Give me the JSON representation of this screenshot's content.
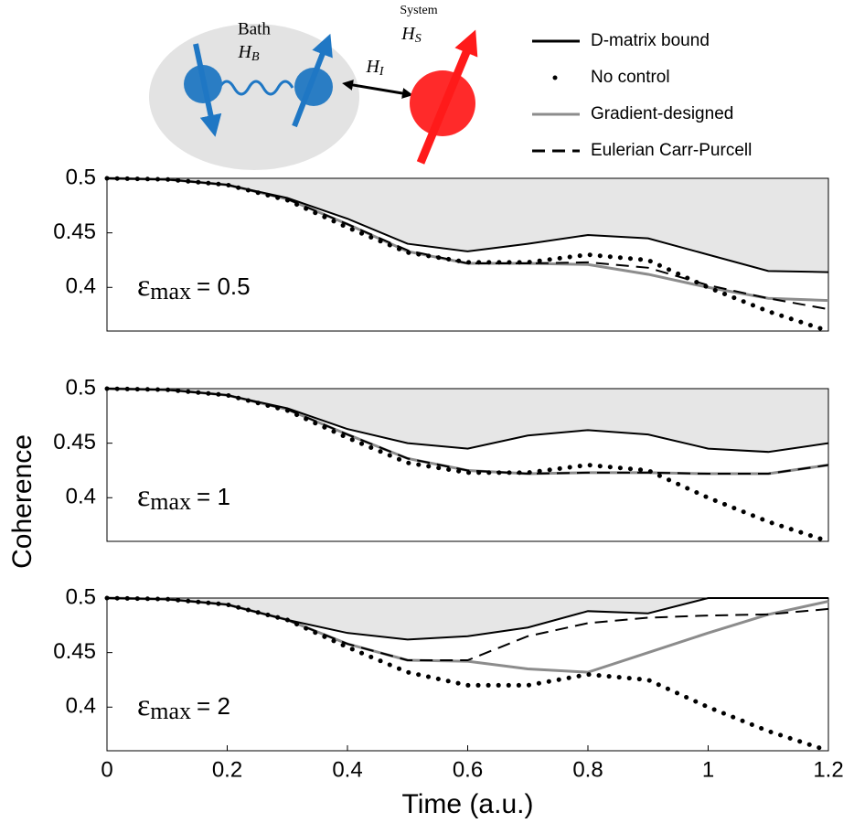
{
  "diagram": {
    "bath": "Bath",
    "bath_symbol": "H",
    "bath_sub": "B",
    "system": "System",
    "system_symbol": "H",
    "system_sub": "S",
    "interaction_symbol": "H",
    "interaction_sub": "I"
  },
  "chart_data": [
    {
      "type": "line",
      "annotation": {
        "symbol": "ε",
        "subscript": "max",
        "text": "= 0.5"
      },
      "x": [
        0,
        0.1,
        0.2,
        0.3,
        0.4,
        0.5,
        0.6,
        0.7,
        0.8,
        0.9,
        1.0,
        1.1,
        1.2
      ],
      "xlim": [
        0,
        1.2
      ],
      "ylim": [
        0.36,
        0.5
      ],
      "yticks": [
        0.4,
        0.45,
        0.5
      ],
      "shade_series": 0,
      "series": [
        {
          "name": "D-matrix bound",
          "color": "#000000",
          "dash": "solid",
          "values": [
            0.5,
            0.499,
            0.494,
            0.482,
            0.463,
            0.44,
            0.433,
            0.44,
            0.448,
            0.445,
            0.43,
            0.415,
            0.414
          ]
        },
        {
          "name": "No control",
          "color": "#000000",
          "dash": "dotted",
          "values": [
            0.5,
            0.499,
            0.494,
            0.48,
            0.455,
            0.432,
            0.423,
            0.423,
            0.43,
            0.425,
            0.4,
            0.378,
            0.36
          ]
        },
        {
          "name": "Gradient-designed",
          "color": "#8c8c8c",
          "dash": "solid",
          "values": [
            0.5,
            0.499,
            0.494,
            0.481,
            0.458,
            0.433,
            0.422,
            0.422,
            0.421,
            0.412,
            0.4,
            0.39,
            0.388
          ]
        },
        {
          "name": "Eulerian Carr-Purcell",
          "color": "#000000",
          "dash": "dashed",
          "values": [
            0.5,
            0.499,
            0.494,
            0.481,
            0.458,
            0.434,
            0.422,
            0.422,
            0.423,
            0.418,
            0.402,
            0.39,
            0.38
          ]
        }
      ]
    },
    {
      "type": "line",
      "annotation": {
        "symbol": "ε",
        "subscript": "max",
        "text": "= 1"
      },
      "ylabel": "Coherence",
      "x": [
        0,
        0.1,
        0.2,
        0.3,
        0.4,
        0.5,
        0.6,
        0.7,
        0.8,
        0.9,
        1.0,
        1.1,
        1.2
      ],
      "xlim": [
        0,
        1.2
      ],
      "ylim": [
        0.36,
        0.5
      ],
      "yticks": [
        0.4,
        0.45,
        0.5
      ],
      "shade_series": 0,
      "series": [
        {
          "name": "D-matrix bound",
          "color": "#000000",
          "dash": "solid",
          "values": [
            0.5,
            0.499,
            0.494,
            0.482,
            0.463,
            0.45,
            0.445,
            0.457,
            0.462,
            0.458,
            0.445,
            0.442,
            0.45
          ]
        },
        {
          "name": "No control",
          "color": "#000000",
          "dash": "dotted",
          "values": [
            0.5,
            0.499,
            0.494,
            0.48,
            0.455,
            0.432,
            0.423,
            0.423,
            0.43,
            0.425,
            0.4,
            0.378,
            0.36
          ]
        },
        {
          "name": "Gradient-designed",
          "color": "#8c8c8c",
          "dash": "solid",
          "values": [
            0.5,
            0.499,
            0.494,
            0.481,
            0.458,
            0.436,
            0.425,
            0.422,
            0.423,
            0.423,
            0.422,
            0.422,
            0.43
          ]
        },
        {
          "name": "Eulerian Carr-Purcell",
          "color": "#000000",
          "dash": "dashed",
          "values": [
            0.5,
            0.499,
            0.494,
            0.481,
            0.458,
            0.436,
            0.425,
            0.422,
            0.423,
            0.423,
            0.422,
            0.422,
            0.43
          ]
        }
      ]
    },
    {
      "type": "line",
      "annotation": {
        "symbol": "ε",
        "subscript": "max",
        "text": "= 2"
      },
      "xlabel": "Time (a.u.)",
      "x": [
        0,
        0.1,
        0.2,
        0.3,
        0.4,
        0.5,
        0.6,
        0.7,
        0.8,
        0.9,
        1.0,
        1.1,
        1.2
      ],
      "xlim": [
        0,
        1.2
      ],
      "xticks": [
        0,
        0.2,
        0.4,
        0.6,
        0.8,
        1,
        1.2
      ],
      "ylim": [
        0.36,
        0.5
      ],
      "yticks": [
        0.4,
        0.45,
        0.5
      ],
      "shade_series": 0,
      "series": [
        {
          "name": "D-matrix bound",
          "color": "#000000",
          "dash": "solid",
          "values": [
            0.5,
            0.499,
            0.494,
            0.48,
            0.468,
            0.462,
            0.465,
            0.473,
            0.488,
            0.486,
            0.5,
            0.5,
            0.5
          ]
        },
        {
          "name": "No control",
          "color": "#000000",
          "dash": "dotted",
          "values": [
            0.5,
            0.499,
            0.494,
            0.48,
            0.455,
            0.432,
            0.42,
            0.42,
            0.43,
            0.425,
            0.4,
            0.378,
            0.36
          ]
        },
        {
          "name": "Gradient-designed",
          "color": "#8c8c8c",
          "dash": "solid",
          "values": [
            0.5,
            0.499,
            0.494,
            0.48,
            0.458,
            0.443,
            0.442,
            0.435,
            0.432,
            0.45,
            0.468,
            0.485,
            0.497
          ]
        },
        {
          "name": "Eulerian Carr-Purcell",
          "color": "#000000",
          "dash": "dashed",
          "values": [
            0.5,
            0.499,
            0.494,
            0.48,
            0.458,
            0.443,
            0.443,
            0.465,
            0.477,
            0.482,
            0.484,
            0.485,
            0.49
          ]
        }
      ]
    }
  ]
}
